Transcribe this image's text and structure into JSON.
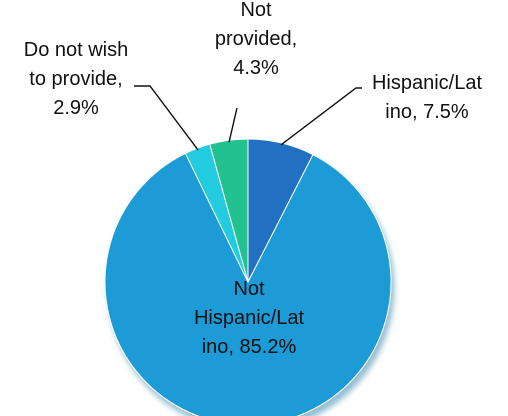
{
  "chart_data": {
    "type": "pie",
    "title": "",
    "slices": [
      {
        "name": "Hispanic/Latino",
        "value": 7.5,
        "label_lines": [
          "Hispanic/Lat",
          "ino, 7.5%"
        ],
        "color": "#2470C2"
      },
      {
        "name": "Not Hispanic/Latino",
        "value": 85.2,
        "label_lines": [
          "Not",
          "Hispanic/Lat",
          "ino, 85.2%"
        ],
        "color": "#1C9BD6"
      },
      {
        "name": "Do not wish to provide",
        "value": 2.9,
        "label_lines": [
          "Do not wish",
          "to provide,",
          "2.9%"
        ],
        "color": "#20CBDD"
      },
      {
        "name": "Not provided",
        "value": 4.3,
        "label_lines": [
          "Not",
          "provided,",
          "4.3%"
        ],
        "color": "#23C18F"
      }
    ],
    "legend": "none",
    "data_labels": "outside with leader lines; main slice label inside"
  }
}
